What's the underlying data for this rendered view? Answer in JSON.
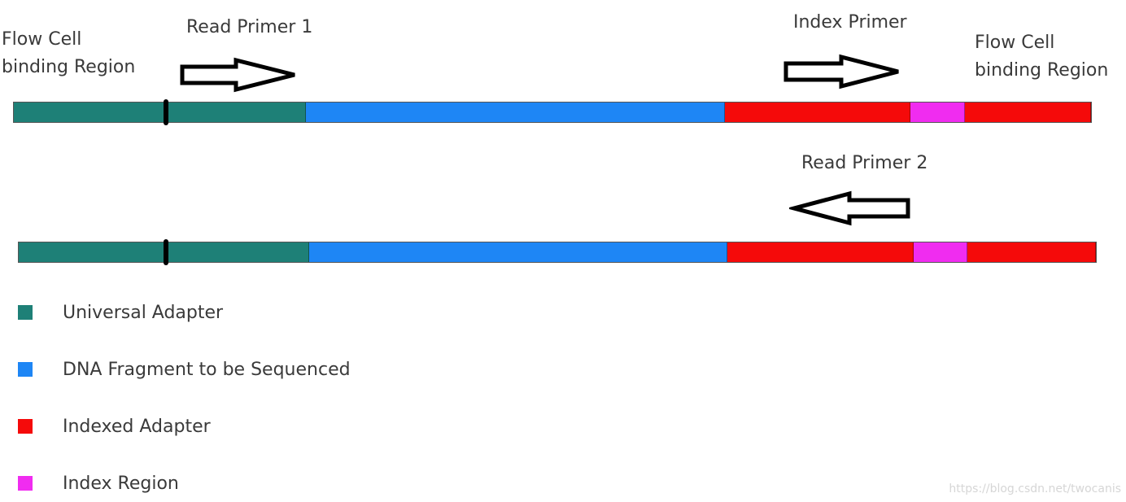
{
  "labels": {
    "flow_cell_left": [
      "Flow Cell",
      "binding Region"
    ],
    "read_primer_1": "Read Primer 1",
    "index_primer": "Index Primer",
    "flow_cell_right": [
      "Flow Cell",
      "binding Region"
    ],
    "read_primer_2": "Read Primer 2"
  },
  "colors": {
    "universal_adapter": "#1e8077",
    "dna_fragment": "#1e86f5",
    "indexed_adapter": "#f50a0a",
    "index_region": "#f02cf0"
  },
  "constructs": [
    {
      "segments": [
        {
          "type": "universal_adapter",
          "fraction": 0.271
        },
        {
          "type": "dna_fragment",
          "fraction": 0.389
        },
        {
          "type": "indexed_adapter",
          "fraction": 0.172
        },
        {
          "type": "index_region",
          "fraction": 0.051
        },
        {
          "type": "indexed_adapter",
          "fraction": 0.117
        }
      ],
      "marker_fraction": 0.141
    },
    {
      "segments": [
        {
          "type": "universal_adapter",
          "fraction": 0.27
        },
        {
          "type": "dna_fragment",
          "fraction": 0.388
        },
        {
          "type": "indexed_adapter",
          "fraction": 0.173
        },
        {
          "type": "index_region",
          "fraction": 0.05
        },
        {
          "type": "indexed_adapter",
          "fraction": 0.119
        }
      ],
      "marker_fraction": 0.137
    }
  ],
  "legend": [
    {
      "color_key": "universal_adapter",
      "label": "Universal Adapter"
    },
    {
      "color_key": "dna_fragment",
      "label": "DNA Fragment to be Sequenced"
    },
    {
      "color_key": "indexed_adapter",
      "label": "Indexed Adapter"
    },
    {
      "color_key": "index_region",
      "label": "Index Region"
    }
  ],
  "watermark": "https://blog.csdn.net/twocanis"
}
